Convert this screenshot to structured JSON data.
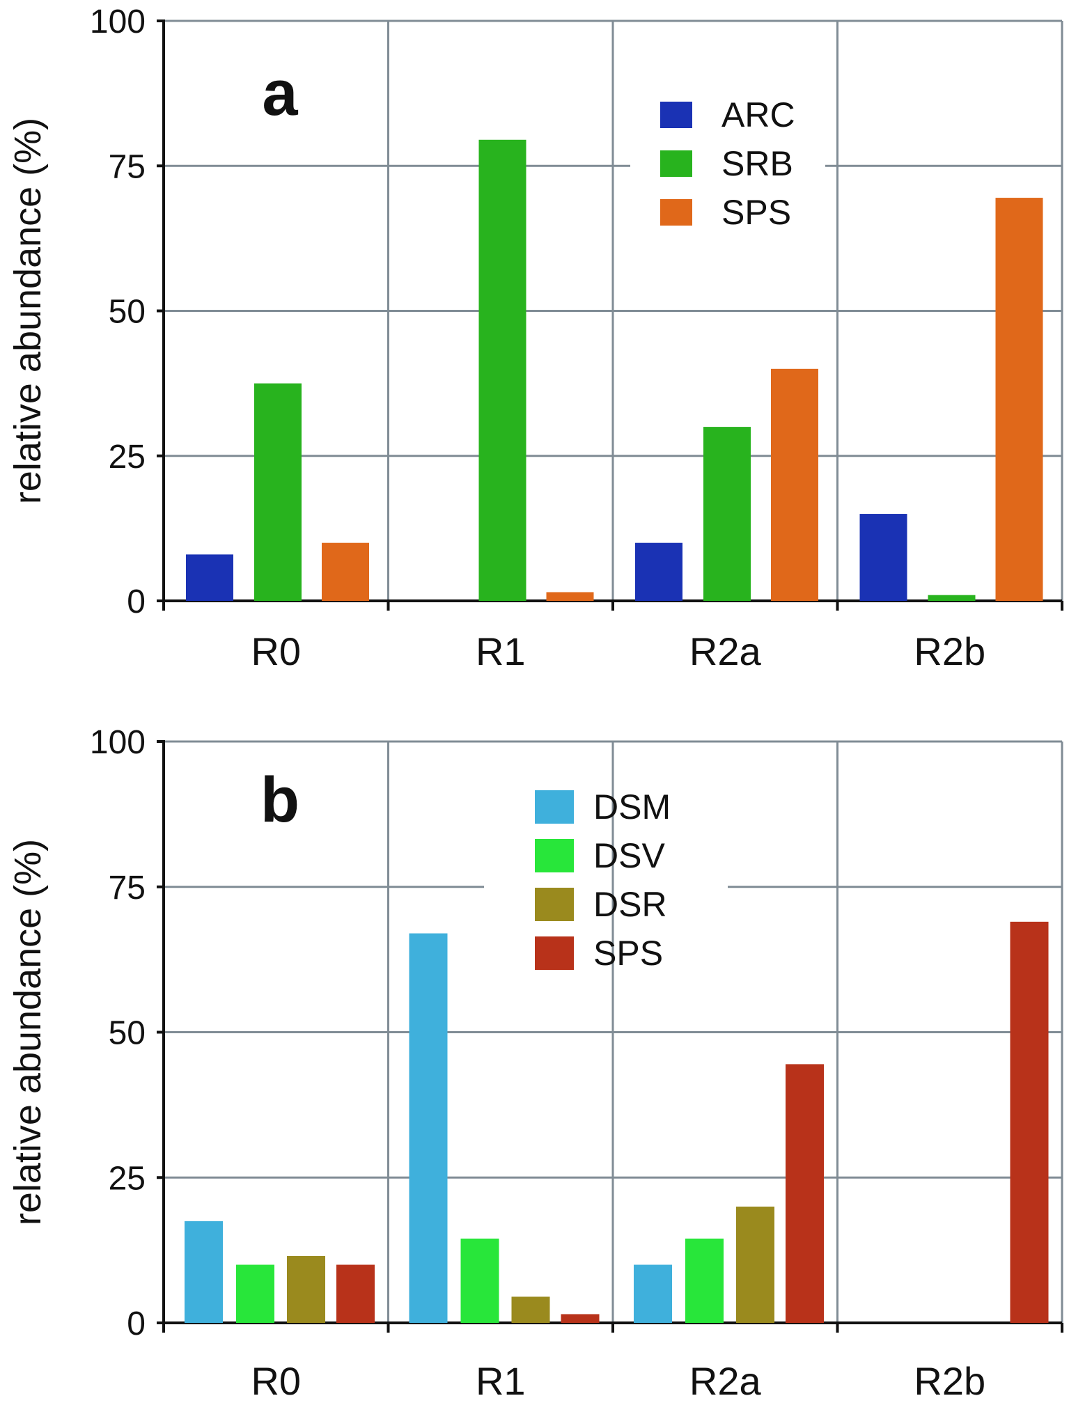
{
  "chart_data": [
    {
      "type": "bar",
      "panel_label": "a",
      "ylabel": "relative abundance (%)",
      "ylim": [
        0,
        100
      ],
      "yticks": [
        "0",
        "25",
        "50",
        "75",
        "100"
      ],
      "ytick_values": [
        0,
        25,
        50,
        75,
        100
      ],
      "categories": [
        "R0",
        "R1",
        "R2a",
        "R2b"
      ],
      "grid": true,
      "legend_position": "top-center",
      "series": [
        {
          "name": "ARC",
          "color": "#1a32b4",
          "values": [
            8,
            0,
            10,
            15
          ]
        },
        {
          "name": "SRB",
          "color": "#28b31e",
          "values": [
            37.5,
            79.5,
            30,
            1
          ]
        },
        {
          "name": "SPS",
          "color": "#e0681a",
          "values": [
            10,
            1.5,
            40,
            69.5
          ]
        }
      ]
    },
    {
      "type": "bar",
      "panel_label": "b",
      "ylabel": "relative abundance (%)",
      "ylim": [
        0,
        100
      ],
      "yticks": [
        "0",
        "25",
        "50",
        "75",
        "100"
      ],
      "ytick_values": [
        0,
        25,
        50,
        75,
        100
      ],
      "categories": [
        "R0",
        "R1",
        "R2a",
        "R2b"
      ],
      "grid": true,
      "legend_position": "top-center",
      "series": [
        {
          "name": "DSM",
          "color": "#3fb0dc",
          "values": [
            17.5,
            67,
            10,
            0
          ]
        },
        {
          "name": "DSV",
          "color": "#28e63a",
          "values": [
            10,
            14.5,
            14.5,
            0
          ]
        },
        {
          "name": "DSR",
          "color": "#9a8a1e",
          "values": [
            11.5,
            4.5,
            20,
            0
          ]
        },
        {
          "name": "SPS",
          "color": "#b8321a",
          "values": [
            10,
            1.5,
            44.5,
            69
          ]
        }
      ]
    }
  ]
}
